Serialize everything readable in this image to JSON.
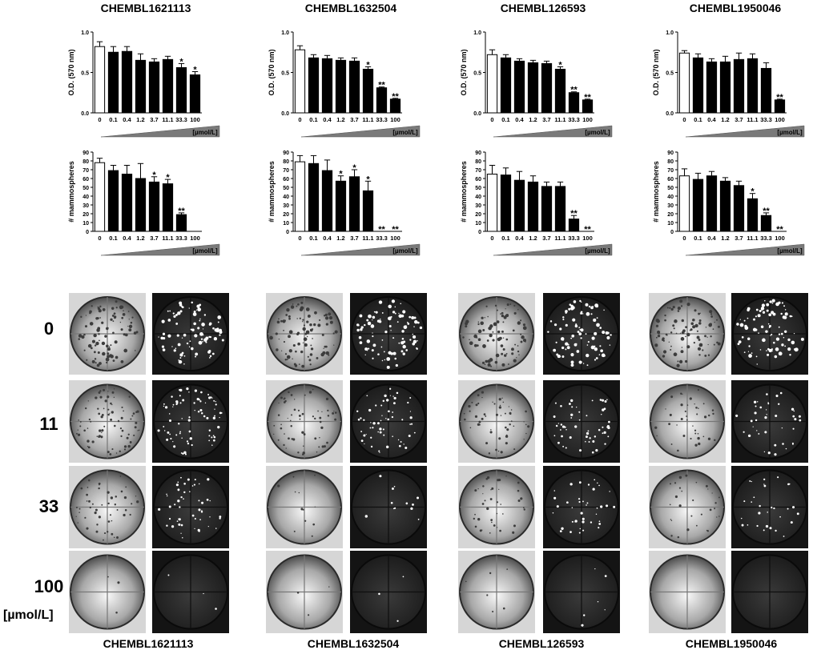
{
  "compounds": [
    "CHEMBL1621113",
    "CHEMBL1632504",
    "CHEMBL126593",
    "CHEMBL1950046"
  ],
  "dose_labels": [
    "0",
    "11",
    "33",
    "100"
  ],
  "unit_label": "[µmol/L]",
  "chart_data": [
    {
      "type": "bar",
      "title": "CHEMBL1621113",
      "ylabel": "O.D. (570 nm)",
      "xlabel": "[µmol/L]",
      "categories": [
        "0",
        "0.1",
        "0.4",
        "1.2",
        "3.7",
        "11.1",
        "33.3",
        "100"
      ],
      "values": [
        0.82,
        0.75,
        0.76,
        0.65,
        0.63,
        0.66,
        0.56,
        0.47
      ],
      "errors": [
        0.06,
        0.07,
        0.06,
        0.08,
        0.04,
        0.04,
        0.05,
        0.04
      ],
      "significance": [
        "",
        "",
        "",
        "",
        "",
        "",
        "*",
        "*"
      ],
      "ylim": [
        0,
        1.0
      ],
      "yticks": [
        "0.0",
        "0.5",
        "1.0"
      ],
      "grid": false
    },
    {
      "type": "bar",
      "title": "CHEMBL1632504",
      "ylabel": "O.D. (570 nm)",
      "xlabel": "[µmol/L]",
      "categories": [
        "0",
        "0.1",
        "0.4",
        "1.2",
        "3.7",
        "11.1",
        "33.3",
        "100"
      ],
      "values": [
        0.78,
        0.68,
        0.67,
        0.65,
        0.64,
        0.54,
        0.31,
        0.17
      ],
      "errors": [
        0.05,
        0.04,
        0.04,
        0.03,
        0.04,
        0.03,
        0.01,
        0.01
      ],
      "significance": [
        "",
        "",
        "",
        "",
        "",
        "*",
        "**",
        "**"
      ],
      "ylim": [
        0,
        1.0
      ],
      "yticks": [
        "0.0",
        "0.5",
        "1.0"
      ],
      "grid": false
    },
    {
      "type": "bar",
      "title": "CHEMBL126593",
      "ylabel": "O.D. (570 nm)",
      "xlabel": "[µmol/L]",
      "categories": [
        "0",
        "0.1",
        "0.4",
        "1.2",
        "3.7",
        "11.1",
        "33.3",
        "100"
      ],
      "values": [
        0.72,
        0.68,
        0.64,
        0.62,
        0.61,
        0.54,
        0.25,
        0.16
      ],
      "errors": [
        0.06,
        0.04,
        0.03,
        0.03,
        0.03,
        0.03,
        0.01,
        0.01
      ],
      "significance": [
        "",
        "",
        "",
        "",
        "",
        "*",
        "**",
        "**"
      ],
      "ylim": [
        0,
        1.0
      ],
      "yticks": [
        "0.0",
        "0.5",
        "1.0"
      ],
      "grid": false
    },
    {
      "type": "bar",
      "title": "CHEMBL1950046",
      "ylabel": "O.D. (570 nm)",
      "xlabel": "[µmol/L]",
      "categories": [
        "0",
        "0.1",
        "0.4",
        "1.2",
        "3.7",
        "11.1",
        "33.3",
        "100"
      ],
      "values": [
        0.74,
        0.68,
        0.63,
        0.63,
        0.66,
        0.67,
        0.55,
        0.16
      ],
      "errors": [
        0.03,
        0.05,
        0.04,
        0.07,
        0.08,
        0.06,
        0.07,
        0.01
      ],
      "significance": [
        "",
        "",
        "",
        "",
        "",
        "",
        "",
        "**"
      ],
      "ylim": [
        0,
        1.0
      ],
      "yticks": [
        "0.0",
        "0.5",
        "1.0"
      ],
      "grid": false
    },
    {
      "type": "bar",
      "title": "CHEMBL1621113",
      "ylabel": "# mammospheres",
      "xlabel": "[µmol/L]",
      "categories": [
        "0",
        "0.1",
        "0.4",
        "1.2",
        "3.7",
        "11.1",
        "33.3",
        "100"
      ],
      "values": [
        78,
        69,
        65,
        60,
        56,
        54,
        19,
        0
      ],
      "errors": [
        5,
        6,
        10,
        17,
        6,
        5,
        2,
        0
      ],
      "significance": [
        "",
        "",
        "",
        "",
        "*",
        "*",
        "**",
        ""
      ],
      "ylim": [
        0,
        90
      ],
      "yticks": [
        "0",
        "10",
        "20",
        "30",
        "40",
        "50",
        "60",
        "70",
        "80",
        "90"
      ],
      "grid": false
    },
    {
      "type": "bar",
      "title": "CHEMBL1632504",
      "ylabel": "# mammospheres",
      "xlabel": "[µmol/L]",
      "categories": [
        "0",
        "0.1",
        "0.4",
        "1.2",
        "3.7",
        "11.1",
        "33.3",
        "100"
      ],
      "values": [
        79,
        77,
        69,
        57,
        62,
        46,
        0,
        0
      ],
      "errors": [
        7,
        9,
        12,
        6,
        8,
        11,
        0,
        0
      ],
      "significance": [
        "",
        "",
        "",
        "*",
        "*",
        "*",
        "**",
        "**"
      ],
      "ylim": [
        0,
        90
      ],
      "yticks": [
        "0",
        "10",
        "20",
        "30",
        "40",
        "50",
        "60",
        "70",
        "80",
        "90"
      ],
      "grid": false
    },
    {
      "type": "bar",
      "title": "CHEMBL126593",
      "ylabel": "# mammospheres",
      "xlabel": "[µmol/L]",
      "categories": [
        "0",
        "0.1",
        "0.4",
        "1.2",
        "3.7",
        "11.1",
        "33.3",
        "100"
      ],
      "values": [
        65,
        64,
        58,
        56,
        51,
        51,
        14,
        0
      ],
      "errors": [
        10,
        8,
        10,
        7,
        5,
        5,
        4,
        0
      ],
      "significance": [
        "",
        "",
        "",
        "",
        "",
        "",
        "**",
        "**"
      ],
      "ylim": [
        0,
        90
      ],
      "yticks": [
        "0",
        "10",
        "20",
        "30",
        "40",
        "50",
        "60",
        "70",
        "80",
        "90"
      ],
      "grid": false
    },
    {
      "type": "bar",
      "title": "CHEMBL1950046",
      "ylabel": "# mammospheres",
      "xlabel": "[µmol/L]",
      "categories": [
        "0",
        "0.1",
        "0.4",
        "1.2",
        "3.7",
        "11.1",
        "33.3",
        "100"
      ],
      "values": [
        63,
        59,
        63,
        57,
        52,
        37,
        18,
        0
      ],
      "errors": [
        8,
        7,
        5,
        4,
        5,
        6,
        3,
        0
      ],
      "significance": [
        "",
        "",
        "",
        "",
        "",
        "*",
        "**",
        "**"
      ],
      "ylim": [
        0,
        90
      ],
      "yticks": [
        "0",
        "10",
        "20",
        "30",
        "40",
        "50",
        "60",
        "70",
        "80",
        "90"
      ],
      "grid": false
    }
  ]
}
